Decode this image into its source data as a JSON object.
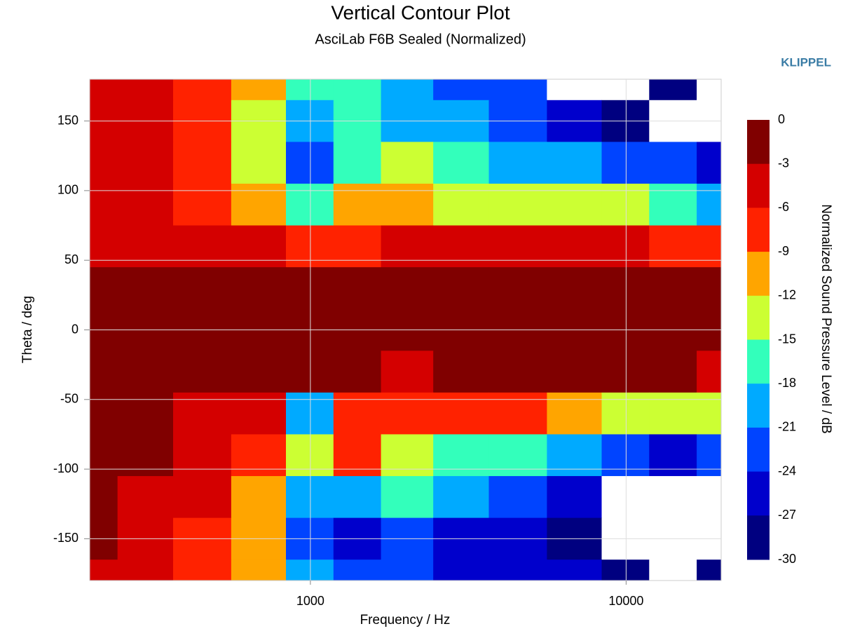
{
  "chart_data": {
    "type": "contour",
    "title": "Vertical Contour Plot",
    "subtitle": "AsciLab F6B Sealed (Normalized)",
    "brand": "KLIPPEL",
    "x_label": "Frequency / Hz",
    "y_label": "Theta / deg",
    "colorbar_label": "Normalized Sound Pressure Level / dB",
    "x": [
      200,
      300,
      450,
      700,
      1000,
      1400,
      2000,
      3000,
      4500,
      7000,
      10000,
      14000,
      20000
    ],
    "y": [
      180,
      150,
      120,
      90,
      60,
      30,
      0,
      -30,
      -60,
      -90,
      -120,
      -150,
      -180
    ],
    "z": [
      [
        -4,
        -5,
        -8,
        -10,
        -16,
        -17,
        -20,
        -22,
        -24,
        -32,
        -31,
        -28,
        -32
      ],
      [
        -4,
        -6,
        -9,
        -13,
        -19,
        -17,
        -19,
        -21,
        -23,
        -27,
        -28,
        -31,
        -32
      ],
      [
        -4,
        -6,
        -8,
        -14,
        -22,
        -16,
        -14,
        -17,
        -19,
        -20,
        -22,
        -24,
        -26
      ],
      [
        -4,
        -5,
        -7,
        -10,
        -16,
        -11,
        -11,
        -13,
        -14,
        -14,
        -15,
        -16,
        -19
      ],
      [
        -3.5,
        -4,
        -4,
        -5,
        -7,
        -7,
        -5,
        -5,
        -5,
        -5,
        -6,
        -7,
        -9
      ],
      [
        -2,
        -2,
        -2,
        -2,
        -2,
        -2,
        -2,
        -2,
        -2,
        -2,
        -2,
        -2,
        -2.5
      ],
      [
        -1,
        -1,
        -1,
        -1,
        -1,
        -1,
        -1,
        -1,
        -1,
        -1,
        -1,
        -1,
        -1
      ],
      [
        -1,
        -1,
        -1,
        -1,
        -2,
        -2,
        -3.5,
        -2,
        -2,
        -2,
        -2,
        -2,
        -3.5
      ],
      [
        -2,
        -2,
        -3.5,
        -5,
        -20,
        -7,
        -7,
        -7,
        -7,
        -11,
        -13,
        -13,
        -14
      ],
      [
        -2,
        -2,
        -4,
        -8,
        -15,
        -8,
        -14,
        -16,
        -17,
        -20,
        -22,
        -25,
        -24
      ],
      [
        -2,
        -3.5,
        -6,
        -10,
        -20,
        -19,
        -18,
        -19,
        -22,
        -26,
        -31,
        -32,
        -32
      ],
      [
        -2.5,
        -4,
        -7,
        -11,
        -23,
        -25,
        -24,
        -26,
        -25,
        -28,
        -32,
        -32,
        -32
      ],
      [
        -4,
        -5,
        -8,
        -12,
        -19,
        -22,
        -24,
        -25,
        -25,
        -26,
        -28,
        -31,
        -30
      ]
    ],
    "xlim": [
      200,
      20000
    ],
    "ylim": [
      -180,
      180
    ],
    "xticks": [
      1000,
      10000
    ],
    "yticks": [
      -150,
      -100,
      -50,
      0,
      50,
      100,
      150
    ],
    "log_x": true,
    "grid": true,
    "levels": [
      0,
      -3,
      -6,
      -9,
      -12,
      -15,
      -18,
      -21,
      -24,
      -27,
      -30
    ],
    "colors": [
      "#800000",
      "#d40000",
      "#ff2200",
      "#ffa500",
      "#ccff33",
      "#33ffbb",
      "#00aaff",
      "#0044ff",
      "#0000cc",
      "#000080"
    ],
    "below_color": "#ffffff"
  }
}
